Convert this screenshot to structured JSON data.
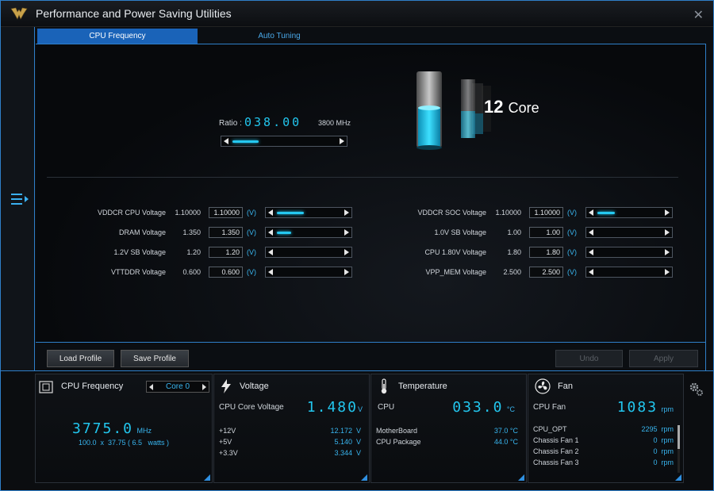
{
  "window": {
    "title": "Performance and Power Saving Utilities"
  },
  "tabs": [
    {
      "label": "CPU Frequency"
    },
    {
      "label": "Auto Tuning"
    }
  ],
  "ratio": {
    "label": "Ratio :",
    "value": "038.00",
    "mhz": "3800 MHz",
    "slider_fraction": 0.25
  },
  "cores": {
    "count": "12",
    "label": "Core"
  },
  "voltages_left": [
    {
      "name": "VDDCR CPU Voltage",
      "default": "1.10000",
      "value": "1.10000",
      "unit": "(V)",
      "slider_fraction": 0.42
    },
    {
      "name": "DRAM Voltage",
      "default": "1.350",
      "value": "1.350",
      "unit": "(V)",
      "slider_fraction": 0.22
    },
    {
      "name": "1.2V SB Voltage",
      "default": "1.20",
      "value": "1.20",
      "unit": "(V)",
      "slider_fraction": 0
    },
    {
      "name": "VTTDDR Voltage",
      "default": "0.600",
      "value": "0.600",
      "unit": "(V)",
      "slider_fraction": 0
    }
  ],
  "voltages_right": [
    {
      "name": "VDDCR SOC Voltage",
      "default": "1.10000",
      "value": "1.10000",
      "unit": "(V)",
      "slider_fraction": 0.28
    },
    {
      "name": "1.0V SB Voltage",
      "default": "1.00",
      "value": "1.00",
      "unit": "(V)",
      "slider_fraction": 0
    },
    {
      "name": "CPU 1.80V Voltage",
      "default": "1.80",
      "value": "1.80",
      "unit": "(V)",
      "slider_fraction": 0
    },
    {
      "name": "VPP_MEM Voltage",
      "default": "2.500",
      "value": "2.500",
      "unit": "(V)",
      "slider_fraction": 0
    }
  ],
  "buttons": {
    "load": "Load Profile",
    "save": "Save Profile",
    "undo": "Undo",
    "apply": "Apply"
  },
  "panel_cpu": {
    "title": "CPU Frequency",
    "selector": "Core 0",
    "freq": "3775.0",
    "freq_unit": "MHz",
    "detail": "100.0  x  37.75 ( 6.5   watts )"
  },
  "panel_voltage": {
    "title": "Voltage",
    "main_label": "CPU Core Voltage",
    "main_value": "1.480",
    "main_unit": "V",
    "rows": [
      {
        "label": "+12V",
        "value": "12.172  V"
      },
      {
        "label": "+5V",
        "value": "5.140  V"
      },
      {
        "label": "+3.3V",
        "value": "3.344  V"
      }
    ]
  },
  "panel_temp": {
    "title": "Temperature",
    "main_label": "CPU",
    "main_value": "033.0",
    "main_unit": "°C",
    "rows": [
      {
        "label": "MotherBoard",
        "value": "37.0 °C"
      },
      {
        "label": "CPU Package",
        "value": "44.0 °C"
      }
    ]
  },
  "panel_fan": {
    "title": "Fan",
    "main_label": "CPU Fan",
    "main_value": "1083",
    "main_unit": "rpm",
    "rows": [
      {
        "label": "CPU_OPT",
        "value": "2295  rpm"
      },
      {
        "label": "Chassis Fan 1",
        "value": "0  rpm"
      },
      {
        "label": "Chassis Fan 2",
        "value": "0  rpm"
      },
      {
        "label": "Chassis Fan 3",
        "value": "0  rpm"
      }
    ]
  },
  "colors": {
    "accent": "#2f7fc9",
    "digits": "#22c6ee",
    "tab_active": "#1a63b8"
  }
}
